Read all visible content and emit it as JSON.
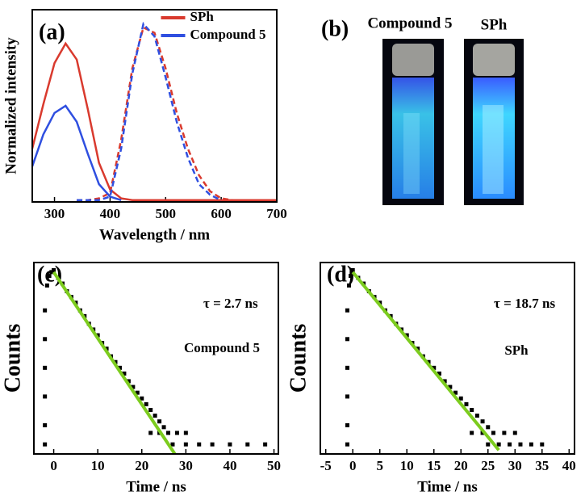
{
  "chart_data": [
    {
      "type": "line",
      "panel_label": "(a)",
      "xlabel": "Wavelength / nm",
      "ylabel": "Normalized intensity",
      "x": [
        260,
        280,
        300,
        320,
        340,
        360,
        380,
        400,
        420,
        440,
        460,
        480,
        500,
        520,
        540,
        560,
        580,
        600,
        620,
        640,
        660,
        680,
        700
      ],
      "xlim": [
        260,
        700
      ],
      "xticks": [
        300,
        400,
        500,
        600,
        700
      ],
      "ylim": [
        0,
        1.08
      ],
      "legend": "upper center",
      "series": [
        {
          "name": "SPh",
          "color": "#d93a2e",
          "values": [
            0.3,
            0.55,
            0.78,
            0.89,
            0.8,
            0.52,
            0.22,
            0.07,
            0.02,
            0.01,
            0.01,
            0.01,
            0.01,
            0.01,
            0.01,
            0.01,
            0.01,
            0.01,
            0.01,
            0.01,
            0.01,
            0.01,
            0.01
          ],
          "dashed_values": [
            null,
            null,
            null,
            null,
            0.01,
            0.01,
            0.02,
            0.05,
            0.35,
            0.75,
            0.98,
            0.95,
            0.75,
            0.5,
            0.3,
            0.15,
            0.06,
            0.02,
            0.01,
            null,
            null,
            null,
            null
          ]
        },
        {
          "name": "Compound 5",
          "color": "#2f4fe0",
          "values": [
            0.2,
            0.38,
            0.5,
            0.54,
            0.45,
            0.27,
            0.1,
            0.03,
            0.01,
            null,
            null,
            null,
            null,
            null,
            null,
            null,
            null,
            null,
            null,
            null,
            null,
            null,
            null
          ],
          "dashed_values": [
            null,
            null,
            null,
            null,
            0.01,
            0.01,
            0.01,
            0.03,
            0.3,
            0.72,
            1.0,
            0.93,
            0.7,
            0.45,
            0.25,
            0.1,
            0.04,
            0.01,
            null,
            null,
            null,
            null,
            null
          ]
        }
      ]
    },
    {
      "type": "scatter",
      "panel_label": "(c)",
      "xlabel": "Time / ns",
      "ylabel": "Counts",
      "annotations": [
        "τ = 2.7 ns",
        "Compound 5"
      ],
      "xlim": [
        -4.5,
        51
      ],
      "xticks": [
        0,
        10,
        20,
        30,
        40,
        50
      ],
      "ylim": [
        0,
        1
      ],
      "color": "#000000",
      "x": [
        -2,
        -2,
        -2,
        -2,
        -2,
        -2,
        -1.5,
        -1,
        -0.5,
        0,
        1,
        2,
        3,
        4,
        5,
        6,
        7,
        8,
        9,
        10,
        11,
        12,
        13,
        14,
        15,
        16,
        17,
        18,
        19,
        20,
        21,
        22,
        23,
        24,
        25,
        22,
        24,
        26,
        28,
        30,
        27,
        30,
        33,
        36,
        40,
        44,
        48
      ],
      "values": [
        0.05,
        0.15,
        0.3,
        0.45,
        0.6,
        0.75,
        0.88,
        0.93,
        0.95,
        0.96,
        0.92,
        0.89,
        0.85,
        0.82,
        0.79,
        0.75,
        0.72,
        0.68,
        0.65,
        0.62,
        0.58,
        0.55,
        0.51,
        0.48,
        0.45,
        0.42,
        0.38,
        0.35,
        0.32,
        0.29,
        0.26,
        0.23,
        0.2,
        0.17,
        0.14,
        0.11,
        0.11,
        0.11,
        0.11,
        0.11,
        0.05,
        0.05,
        0.05,
        0.05,
        0.05,
        0.05,
        0.05
      ],
      "fit": {
        "color": "#7ccc1e",
        "x": [
          0,
          27.5
        ],
        "values": [
          0.95,
          0.0
        ]
      }
    },
    {
      "type": "scatter",
      "panel_label": "(d)",
      "xlabel": "Time / ns",
      "ylabel": "Counts",
      "annotations": [
        "τ = 18.7 ns",
        "SPh"
      ],
      "xlim": [
        -6,
        41
      ],
      "xticks": [
        -5,
        0,
        5,
        10,
        15,
        20,
        25,
        30,
        35,
        40
      ],
      "ylim": [
        0,
        1
      ],
      "color": "#000000",
      "x": [
        -1,
        -1,
        -1,
        -1,
        -1,
        -1,
        -0.7,
        -0.4,
        -0.2,
        0,
        1,
        2,
        3,
        4,
        5,
        6,
        7,
        8,
        9,
        10,
        11,
        12,
        13,
        14,
        15,
        16,
        17,
        18,
        19,
        20,
        21,
        22,
        23,
        24,
        25,
        22,
        24,
        26,
        28,
        30,
        25,
        27,
        29,
        31,
        33,
        35
      ],
      "values": [
        0.05,
        0.15,
        0.3,
        0.45,
        0.6,
        0.75,
        0.88,
        0.93,
        0.95,
        0.96,
        0.92,
        0.89,
        0.85,
        0.82,
        0.79,
        0.75,
        0.72,
        0.68,
        0.65,
        0.62,
        0.58,
        0.55,
        0.51,
        0.48,
        0.45,
        0.42,
        0.38,
        0.35,
        0.32,
        0.29,
        0.26,
        0.23,
        0.2,
        0.17,
        0.14,
        0.11,
        0.11,
        0.11,
        0.11,
        0.11,
        0.05,
        0.05,
        0.05,
        0.05,
        0.05,
        0.05
      ],
      "fit": {
        "color": "#7ccc1e",
        "x": [
          0,
          27
        ],
        "values": [
          0.95,
          0.02
        ]
      }
    }
  ],
  "photo": {
    "panel_label": "(b)",
    "labels": [
      "Compound 5",
      "SPh"
    ]
  }
}
